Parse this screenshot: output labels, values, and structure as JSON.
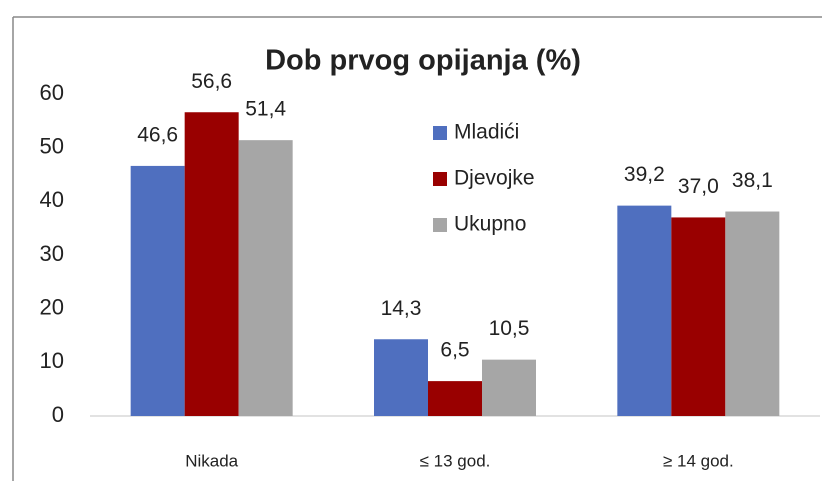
{
  "chart_data": {
    "type": "bar",
    "title": "Dob prvog opijanja (%)",
    "categories": [
      "Nikada",
      "≤ 13 god.",
      "≥ 14 god."
    ],
    "series": [
      {
        "name": "Mladići",
        "color": "#4f6fbf",
        "values": [
          46.6,
          14.3,
          39.2
        ],
        "value_labels": [
          "46,6",
          "14,3",
          "39,2"
        ]
      },
      {
        "name": "Djevojke",
        "color": "#990000",
        "values": [
          56.6,
          6.5,
          37.0
        ],
        "value_labels": [
          "56,6",
          "6,5",
          "37,0"
        ]
      },
      {
        "name": "Ukupno",
        "color": "#a6a6a6",
        "values": [
          51.4,
          10.5,
          38.1
        ],
        "value_labels": [
          "51,4",
          "10,5",
          "38,1"
        ]
      }
    ],
    "ylim": [
      0,
      60
    ],
    "yticks": [
      0,
      10,
      20,
      30,
      40,
      50,
      60
    ],
    "grid": false
  }
}
